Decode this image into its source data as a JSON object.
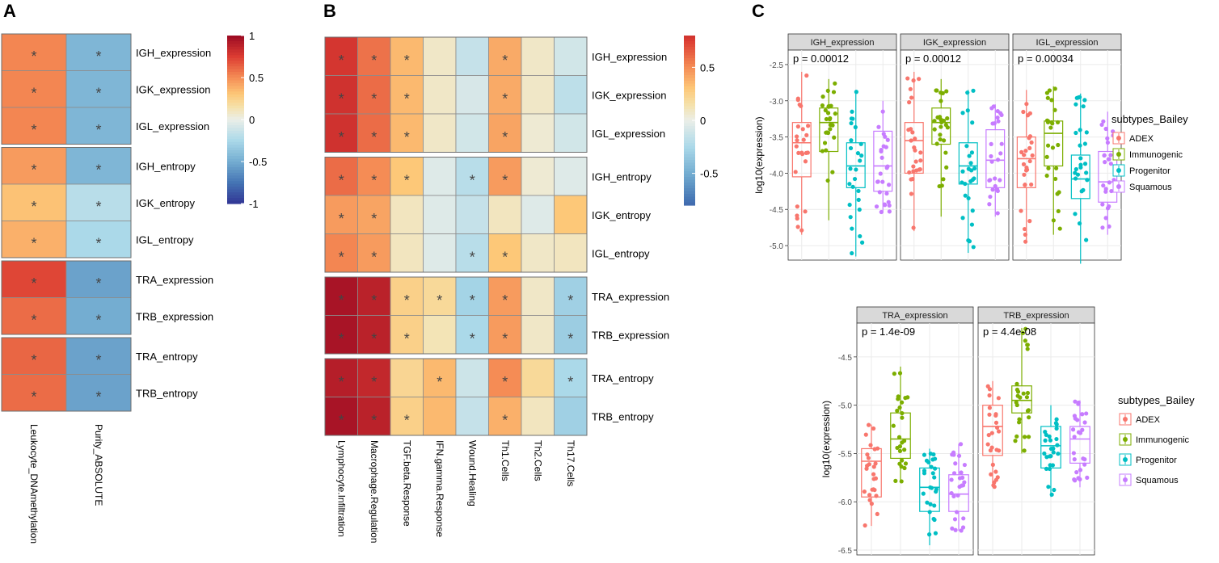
{
  "panels": {
    "a": "A",
    "b": "B",
    "c": "C"
  },
  "colors": {
    "ADEX": "#F8766D",
    "Immunogenic": "#7CAE00",
    "Progenitor": "#00BFC4",
    "Squamous": "#C77CFF",
    "cell_border": "#8c8c8c",
    "strip_fill": "#d9d9d9"
  },
  "chart_data": [
    {
      "id": "A",
      "type": "heatmap",
      "columns": [
        "Leukocyte_DNAmethylation",
        "Purity_ABSOLUTE"
      ],
      "row_groups": [
        [
          "IGH_expression",
          "IGK_expression",
          "IGL_expression"
        ],
        [
          "IGH_entropy",
          "IGK_entropy",
          "IGL_entropy"
        ],
        [
          "TRA_expression",
          "TRB_expression"
        ],
        [
          "TRA_entropy",
          "TRB_entropy"
        ]
      ],
      "values": [
        [
          0.52,
          -0.45
        ],
        [
          0.52,
          -0.45
        ],
        [
          0.52,
          -0.45
        ],
        [
          0.45,
          -0.45
        ],
        [
          0.32,
          -0.2
        ],
        [
          0.38,
          -0.25
        ],
        [
          0.72,
          -0.55
        ],
        [
          0.6,
          -0.5
        ],
        [
          0.62,
          -0.55
        ],
        [
          0.6,
          -0.55
        ]
      ],
      "stars": [
        [
          1,
          1
        ],
        [
          1,
          1
        ],
        [
          1,
          1
        ],
        [
          1,
          1
        ],
        [
          1,
          1
        ],
        [
          1,
          1
        ],
        [
          1,
          1
        ],
        [
          1,
          1
        ],
        [
          1,
          1
        ],
        [
          1,
          1
        ]
      ],
      "colorbar": {
        "range": [
          -1,
          1
        ],
        "ticks": [
          "1",
          "0.5",
          "0",
          "-0.5",
          "-1"
        ]
      }
    },
    {
      "id": "B",
      "type": "heatmap",
      "columns": [
        "Lymphocyte.Infiltration",
        "Macrophage.Regulation",
        "TGF.beta.Response",
        "IFN.gamma.Response",
        "Wound.Healing",
        "Th1.Cells",
        "Th2.Cells",
        "Th17.Cells"
      ],
      "row_groups": [
        [
          "IGH_expression",
          "IGK_expression",
          "IGL_expression"
        ],
        [
          "IGH_entropy",
          "IGK_entropy",
          "IGL_entropy"
        ],
        [
          "TRA_expression",
          "TRB_expression"
        ],
        [
          "TRA_entropy",
          "TRB_entropy"
        ]
      ],
      "values": [
        [
          0.78,
          0.58,
          0.35,
          0.08,
          -0.15,
          0.4,
          0.08,
          -0.1
        ],
        [
          0.8,
          0.6,
          0.35,
          0.08,
          -0.08,
          0.4,
          0.08,
          -0.18
        ],
        [
          0.8,
          0.6,
          0.35,
          0.08,
          -0.1,
          0.42,
          0.05,
          -0.1
        ],
        [
          0.6,
          0.5,
          0.3,
          -0.05,
          -0.2,
          0.45,
          0.05,
          -0.05
        ],
        [
          0.45,
          0.42,
          0.1,
          -0.05,
          -0.15,
          0.1,
          -0.05,
          0.3
        ],
        [
          0.52,
          0.45,
          0.1,
          -0.05,
          -0.2,
          0.3,
          0.08,
          0.1
        ],
        [
          0.95,
          0.88,
          0.25,
          0.2,
          -0.28,
          0.45,
          0.08,
          -0.3
        ],
        [
          0.95,
          0.88,
          0.25,
          0.12,
          -0.25,
          0.45,
          0.08,
          -0.32
        ],
        [
          0.9,
          0.85,
          0.22,
          0.35,
          -0.12,
          0.5,
          0.2,
          -0.25
        ],
        [
          0.95,
          0.88,
          0.25,
          0.35,
          -0.15,
          0.38,
          0.1,
          -0.3
        ]
      ],
      "stars": [
        [
          1,
          1,
          1,
          0,
          0,
          1,
          0,
          0
        ],
        [
          1,
          1,
          1,
          0,
          0,
          1,
          0,
          0
        ],
        [
          1,
          1,
          1,
          0,
          0,
          1,
          0,
          0
        ],
        [
          1,
          1,
          1,
          0,
          1,
          1,
          0,
          0
        ],
        [
          1,
          1,
          0,
          0,
          0,
          0,
          0,
          0
        ],
        [
          1,
          1,
          0,
          0,
          1,
          1,
          0,
          0
        ],
        [
          1,
          1,
          1,
          1,
          1,
          1,
          0,
          1
        ],
        [
          1,
          1,
          1,
          0,
          1,
          1,
          0,
          1
        ],
        [
          1,
          1,
          0,
          1,
          0,
          1,
          0,
          1
        ],
        [
          1,
          1,
          1,
          0,
          0,
          1,
          0,
          0
        ]
      ],
      "colorbar": {
        "range": [
          -0.8,
          0.8
        ],
        "ticks": [
          "0.5",
          "0",
          "-0.5"
        ]
      }
    },
    {
      "id": "C",
      "type": "boxplot",
      "ylabel": "log10(expression)",
      "legend_title": "subtypes_Bailey",
      "groups": [
        "ADEX",
        "Immunogenic",
        "Progenitor",
        "Squamous"
      ],
      "rows": [
        {
          "ylim": [
            -5.2,
            -2.3
          ],
          "yticks": [
            -2.5,
            -3.0,
            -3.5,
            -4.0,
            -4.5,
            -5.0
          ],
          "facets": [
            {
              "strip": "IGH_expression",
              "p": "p = 0.00012",
              "boxes": [
                [
                  -4.85,
                  -4.05,
                  -3.58,
                  -3.3,
                  -2.6
                ],
                [
                  -4.65,
                  -3.7,
                  -3.3,
                  -3.1,
                  -2.7
                ],
                [
                  -5.15,
                  -4.2,
                  -3.9,
                  -3.58,
                  -2.85
                ],
                [
                  -4.55,
                  -4.25,
                  -3.9,
                  -3.42,
                  -3.0
                ]
              ]
            },
            {
              "strip": "IGK_expression",
              "p": "p = 0.00012",
              "boxes": [
                [
                  -4.8,
                  -4.0,
                  -3.55,
                  -3.3,
                  -2.6
                ],
                [
                  -4.6,
                  -3.6,
                  -3.3,
                  -3.1,
                  -2.7
                ],
                [
                  -5.1,
                  -4.15,
                  -3.9,
                  -3.58,
                  -2.85
                ],
                [
                  -4.6,
                  -4.2,
                  -3.82,
                  -3.4,
                  -3.05
                ]
              ]
            },
            {
              "strip": "IGL_expression",
              "p": "p = 0.00034",
              "boxes": [
                [
                  -4.95,
                  -4.2,
                  -3.8,
                  -3.5,
                  -2.85
                ],
                [
                  -4.85,
                  -3.9,
                  -3.45,
                  -3.28,
                  -2.8
                ],
                [
                  -5.25,
                  -4.35,
                  -4.08,
                  -3.75,
                  -2.9
                ],
                [
                  -4.85,
                  -4.4,
                  -4.12,
                  -3.7,
                  -3.15
                ]
              ]
            }
          ]
        },
        {
          "ylim": [
            -6.55,
            -4.15
          ],
          "yticks": [
            -4.5,
            -5.0,
            -5.5,
            -6.0,
            -6.5
          ],
          "facets": [
            {
              "strip": "TRA_expression",
              "p": "p = 1.4e-09",
              "boxes": [
                [
                  -6.25,
                  -5.95,
                  -5.58,
                  -5.45,
                  -5.2
                ],
                [
                  -5.8,
                  -5.55,
                  -5.35,
                  -5.08,
                  -4.6
                ],
                [
                  -6.45,
                  -6.1,
                  -5.85,
                  -5.65,
                  -5.45
                ],
                [
                  -6.3,
                  -6.1,
                  -5.92,
                  -5.72,
                  -5.4
                ]
              ]
            },
            {
              "strip": "TRB_expression",
              "p": "p = 4.4e-08",
              "boxes": [
                [
                  -5.85,
                  -5.52,
                  -5.22,
                  -5.0,
                  -4.75
                ],
                [
                  -5.5,
                  -5.08,
                  -4.95,
                  -4.8,
                  -4.2
                ],
                [
                  -5.95,
                  -5.65,
                  -5.42,
                  -5.22,
                  -5.0
                ],
                [
                  -5.85,
                  -5.6,
                  -5.35,
                  -5.22,
                  -4.95
                ]
              ]
            }
          ]
        }
      ]
    }
  ]
}
